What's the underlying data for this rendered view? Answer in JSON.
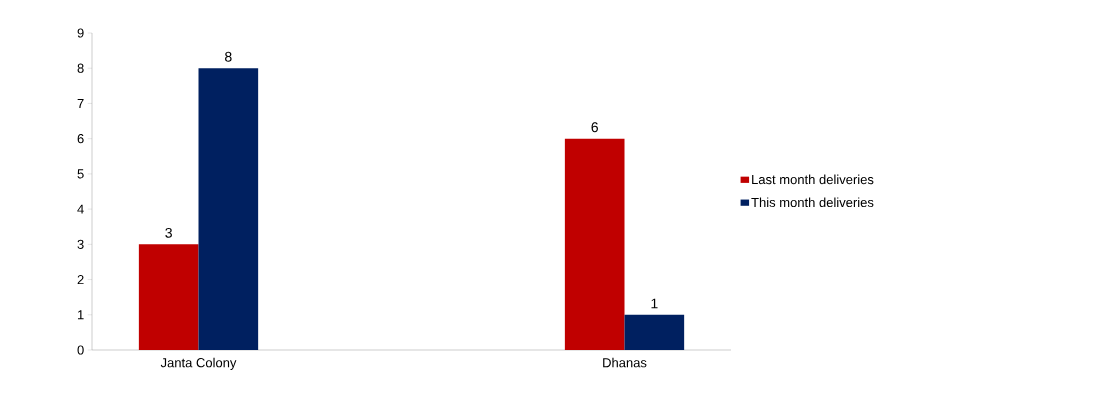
{
  "chart_data": {
    "type": "bar",
    "categories": [
      "Janta Colony",
      null,
      "Dhanas"
    ],
    "series": [
      {
        "name": "Last month deliveries",
        "color": "#c00000",
        "values": [
          3,
          null,
          6
        ]
      },
      {
        "name": "This month deliveries",
        "color": "#002060",
        "values": [
          8,
          null,
          1
        ]
      }
    ],
    "ylim": [
      0,
      9
    ],
    "yticks": [
      0,
      1,
      2,
      3,
      4,
      5,
      6,
      7,
      8,
      9
    ],
    "data_labels": true,
    "legend": "right",
    "grid": false
  }
}
